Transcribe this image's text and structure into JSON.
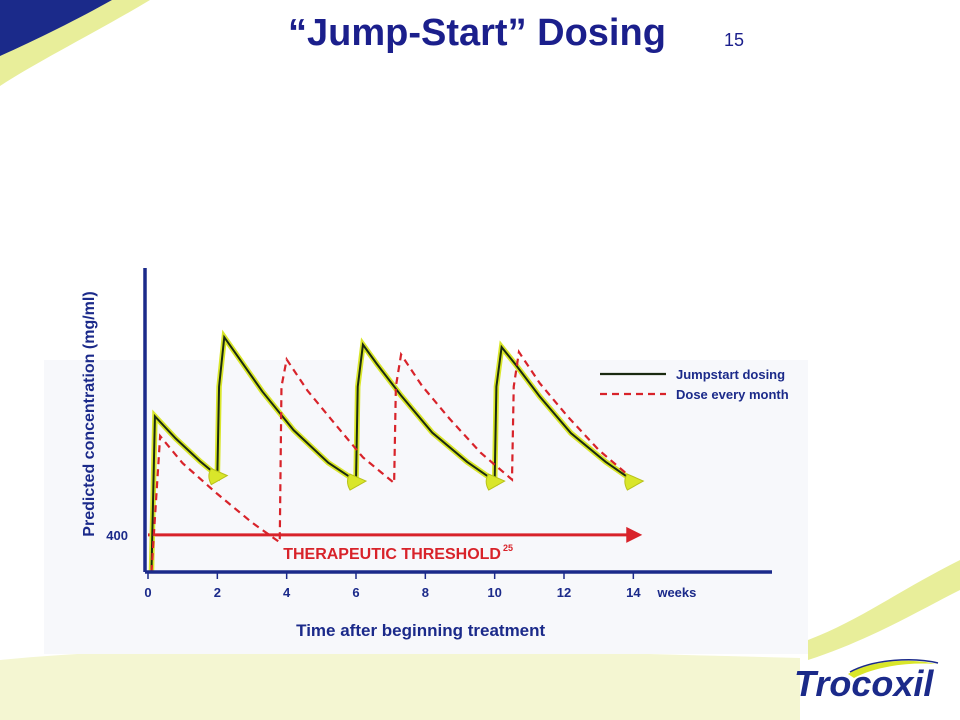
{
  "slide": {
    "title": "“Jump-Start” Dosing",
    "title_superscript": "15",
    "logo_text": "Trocoxil"
  },
  "colors": {
    "title": "#1b1f8c",
    "axis": "#1b2a8a",
    "jumpstart_line": "#1a2a10",
    "jumpstart_glow": "#d9e62a",
    "dose_monthly_line": "#d8232a",
    "threshold": "#d8232a",
    "marker": "#d9e62a",
    "swoosh_yellow": "#e8ee9a",
    "swoosh_blue": "#1b2a8a"
  },
  "chart_data": {
    "type": "line",
    "ylabel": "Predicted concentration (mg/ml)",
    "xlabel": "Time after beginning treatment",
    "x_unit": "weeks",
    "x_ticks": [
      0,
      2,
      4,
      6,
      8,
      10,
      12,
      14
    ],
    "y_tick_labels": [
      "400"
    ],
    "xlim": [
      0,
      18
    ],
    "ylim": [
      325,
      940
    ],
    "threshold": {
      "y": 400,
      "x_end": 14.2,
      "label": "THERAPEUTIC THRESHOLD",
      "label_superscript": "25"
    },
    "legend": {
      "position": "top-right",
      "entries": [
        "Jumpstart dosing",
        "Dose every month"
      ]
    },
    "series": [
      {
        "name": "Jumpstart dosing",
        "style": "solid",
        "x": [
          0.1,
          0.2,
          0.8,
          1.5,
          2.0,
          2.05,
          2.2,
          2.6,
          3.3,
          4.2,
          5.2,
          6.0,
          6.05,
          6.2,
          6.6,
          7.3,
          8.2,
          9.2,
          10.0,
          10.05,
          10.2,
          10.6,
          11.3,
          12.2,
          13.2,
          14.0
        ],
        "y": [
          325,
          640,
          595,
          549,
          520,
          700,
          800,
          760,
          690,
          612,
          546,
          509,
          700,
          785,
          746,
          682,
          607,
          548,
          509,
          700,
          780,
          745,
          680,
          606,
          548,
          509
        ]
      },
      {
        "name": "Dose every month",
        "style": "dashed",
        "x": [
          0.1,
          0.35,
          1.0,
          2.0,
          3.0,
          3.8,
          3.85,
          4.0,
          4.6,
          5.4,
          6.2,
          7.1,
          7.15,
          7.3,
          7.9,
          8.7,
          9.6,
          10.5,
          10.55,
          10.7,
          11.3,
          12.1,
          13.0,
          14.0
        ],
        "y": [
          325,
          600,
          545,
          483,
          425,
          385,
          700,
          755,
          692,
          624,
          557,
          505,
          700,
          765,
          702,
          635,
          566,
          512,
          700,
          770,
          707,
          640,
          572,
          512
        ]
      }
    ],
    "markers": {
      "x": [
        2.0,
        6.0,
        10.0,
        14.0
      ],
      "y": [
        520,
        509,
        509,
        509
      ]
    }
  }
}
